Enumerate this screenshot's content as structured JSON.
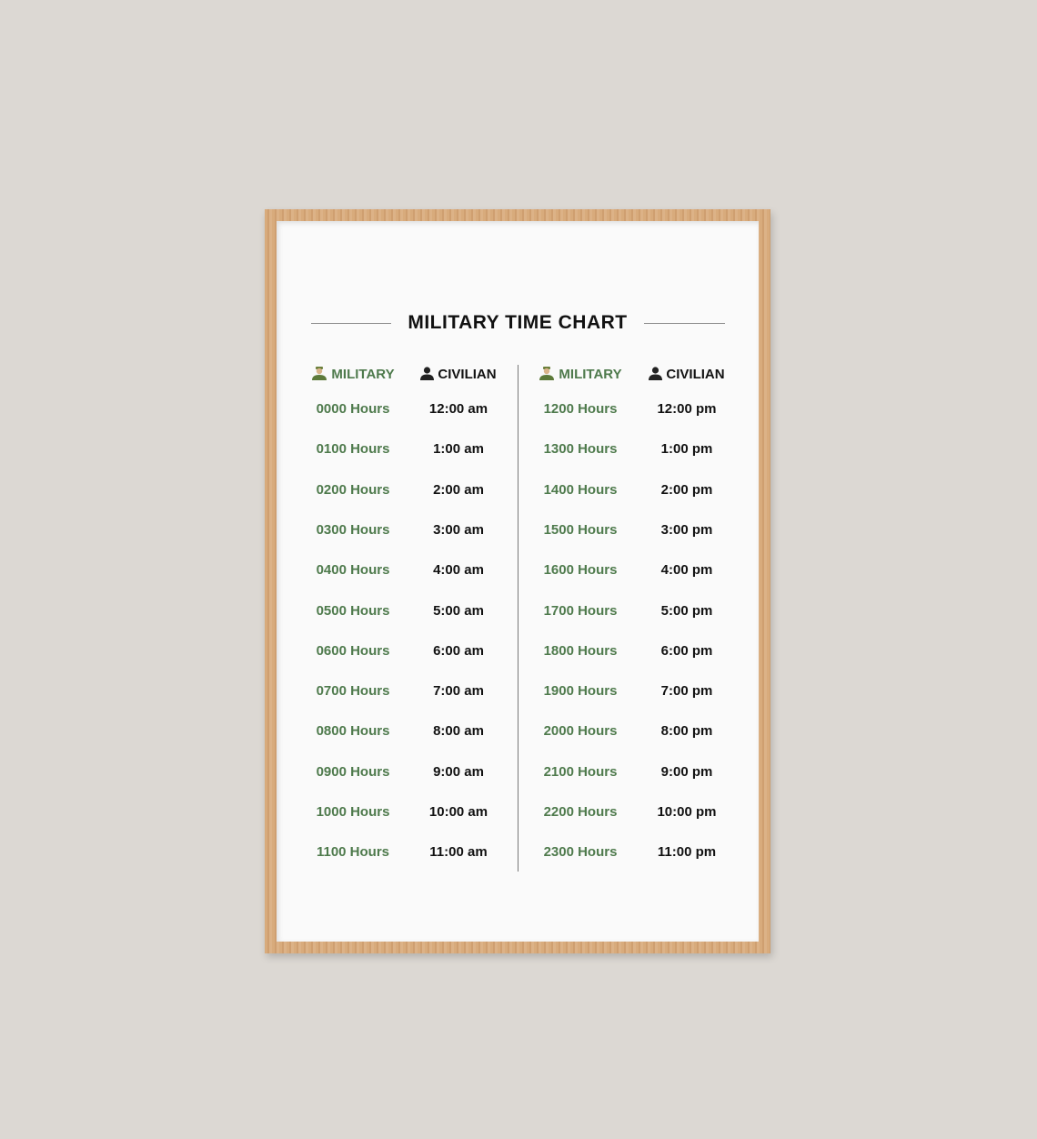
{
  "title": "MILITARY TIME CHART",
  "headers": {
    "military": "MILITARY",
    "civilian": "CIVILIAN",
    "military_icon": "soldier-icon",
    "civilian_icon": "person-icon"
  },
  "colors": {
    "military": "#4e7a4c",
    "civilian": "#111111",
    "frame": "#d4a87a",
    "wall": "#dcd8d3"
  },
  "left_rows": [
    {
      "military": "0000 Hours",
      "civilian": "12:00 am"
    },
    {
      "military": "0100 Hours",
      "civilian": "1:00 am"
    },
    {
      "military": "0200 Hours",
      "civilian": "2:00 am"
    },
    {
      "military": "0300 Hours",
      "civilian": "3:00 am"
    },
    {
      "military": "0400 Hours",
      "civilian": "4:00 am"
    },
    {
      "military": "0500 Hours",
      "civilian": "5:00 am"
    },
    {
      "military": "0600 Hours",
      "civilian": "6:00 am"
    },
    {
      "military": "0700 Hours",
      "civilian": "7:00 am"
    },
    {
      "military": "0800 Hours",
      "civilian": "8:00 am"
    },
    {
      "military": "0900 Hours",
      "civilian": "9:00 am"
    },
    {
      "military": "1000 Hours",
      "civilian": "10:00 am"
    },
    {
      "military": "1100 Hours",
      "civilian": "11:00 am"
    }
  ],
  "right_rows": [
    {
      "military": "1200 Hours",
      "civilian": "12:00 pm"
    },
    {
      "military": "1300 Hours",
      "civilian": "1:00 pm"
    },
    {
      "military": "1400 Hours",
      "civilian": "2:00 pm"
    },
    {
      "military": "1500 Hours",
      "civilian": "3:00 pm"
    },
    {
      "military": "1600 Hours",
      "civilian": "4:00 pm"
    },
    {
      "military": "1700 Hours",
      "civilian": "5:00 pm"
    },
    {
      "military": "1800 Hours",
      "civilian": "6:00 pm"
    },
    {
      "military": "1900 Hours",
      "civilian": "7:00 pm"
    },
    {
      "military": "2000 Hours",
      "civilian": "8:00 pm"
    },
    {
      "military": "2100 Hours",
      "civilian": "9:00 pm"
    },
    {
      "military": "2200 Hours",
      "civilian": "10:00 pm"
    },
    {
      "military": "2300 Hours",
      "civilian": "11:00 pm"
    }
  ]
}
